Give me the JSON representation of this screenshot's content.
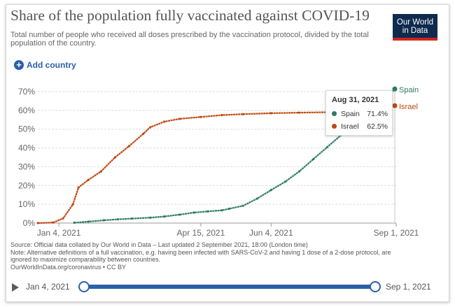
{
  "header": {
    "title": "Share of the population fully vaccinated against COVID-19",
    "subtitle": "Total number of people who received all doses prescribed by the vaccination protocol, divided by the total population of the country.",
    "logo_line1": "Our World",
    "logo_line2": "in Data"
  },
  "controls": {
    "add_country": "Add country"
  },
  "tooltip": {
    "date": "Aug 31, 2021",
    "rows": [
      {
        "name": "Spain",
        "value": "71.4%"
      },
      {
        "name": "Israel",
        "value": "62.5%"
      }
    ]
  },
  "footer": {
    "source": "Source: Official data collated by Our World in Data – Last updated 2 September 2021, 18:00 (London time)",
    "note": "Note: Alternative definitions of a full vaccination, e.g. having been infected with SARS-CoV-2 and having 1 dose of a 2-dose protocol, are ignored to maximize comparability between countries.",
    "url": "OurWorldInData.org/coronavirus • CC BY"
  },
  "timeline": {
    "start": "Jan 4, 2021",
    "end": "Sep 1, 2021"
  },
  "colors": {
    "spain": "#2e7a64",
    "israel": "#bf4711",
    "accent": "#2c5fa8",
    "logo_bg": "#0e2a4e",
    "logo_bar": "#ce261e"
  },
  "chart_data": {
    "type": "line",
    "title": "Share of the population fully vaccinated against COVID-19",
    "x_ticks": [
      "Jan 4, 2021",
      "Apr 15, 2021",
      "Jun 4, 2021",
      "Sep 1, 2021"
    ],
    "y_ticks": [
      "0%",
      "10%",
      "20%",
      "30%",
      "40%",
      "50%",
      "60%",
      "70%"
    ],
    "ylim": [
      0,
      70
    ],
    "xlim": [
      "2020-12-20",
      "2021-09-01"
    ],
    "grid": "horizontal dashed",
    "series": [
      {
        "name": "Spain",
        "end_label": "Spain",
        "color": "#2e7a64",
        "points": [
          [
            "2021-01-15",
            0.2
          ],
          [
            "2021-01-25",
            0.8
          ],
          [
            "2021-02-05",
            1.5
          ],
          [
            "2021-02-15",
            2.0
          ],
          [
            "2021-02-25",
            2.4
          ],
          [
            "2021-03-10",
            2.9
          ],
          [
            "2021-03-20",
            3.5
          ],
          [
            "2021-03-31",
            4.5
          ],
          [
            "2021-04-10",
            5.6
          ],
          [
            "2021-04-20",
            6.2
          ],
          [
            "2021-04-30",
            6.8
          ],
          [
            "2021-05-05",
            7.6
          ],
          [
            "2021-05-15",
            9.2
          ],
          [
            "2021-05-25",
            13.0
          ],
          [
            "2021-06-04",
            17.6
          ],
          [
            "2021-06-14",
            22.0
          ],
          [
            "2021-06-24",
            27.5
          ],
          [
            "2021-07-04",
            34.0
          ],
          [
            "2021-07-14",
            40.5
          ],
          [
            "2021-07-24",
            47.0
          ],
          [
            "2021-08-03",
            53.0
          ],
          [
            "2021-08-13",
            59.0
          ],
          [
            "2021-08-23",
            65.5
          ],
          [
            "2021-08-31",
            71.4
          ]
        ]
      },
      {
        "name": "Israel",
        "end_label": "Israel",
        "color": "#bf4711",
        "points": [
          [
            "2020-12-20",
            0.0
          ],
          [
            "2020-12-31",
            0.3
          ],
          [
            "2021-01-07",
            2.5
          ],
          [
            "2021-01-14",
            10.0
          ],
          [
            "2021-01-18",
            19.0
          ],
          [
            "2021-01-25",
            23.0
          ],
          [
            "2021-02-03",
            27.5
          ],
          [
            "2021-02-13",
            35.0
          ],
          [
            "2021-02-23",
            41.0
          ],
          [
            "2021-03-05",
            47.5
          ],
          [
            "2021-03-10",
            51.0
          ],
          [
            "2021-03-20",
            54.0
          ],
          [
            "2021-03-31",
            55.5
          ],
          [
            "2021-04-15",
            56.5
          ],
          [
            "2021-04-30",
            57.5
          ],
          [
            "2021-05-15",
            58.0
          ],
          [
            "2021-06-04",
            58.5
          ],
          [
            "2021-06-24",
            58.8
          ],
          [
            "2021-07-14",
            59.0
          ],
          [
            "2021-07-31",
            59.2
          ],
          [
            "2021-08-15",
            59.6
          ],
          [
            "2021-08-25",
            60.5
          ],
          [
            "2021-08-31",
            62.5
          ]
        ]
      }
    ]
  }
}
